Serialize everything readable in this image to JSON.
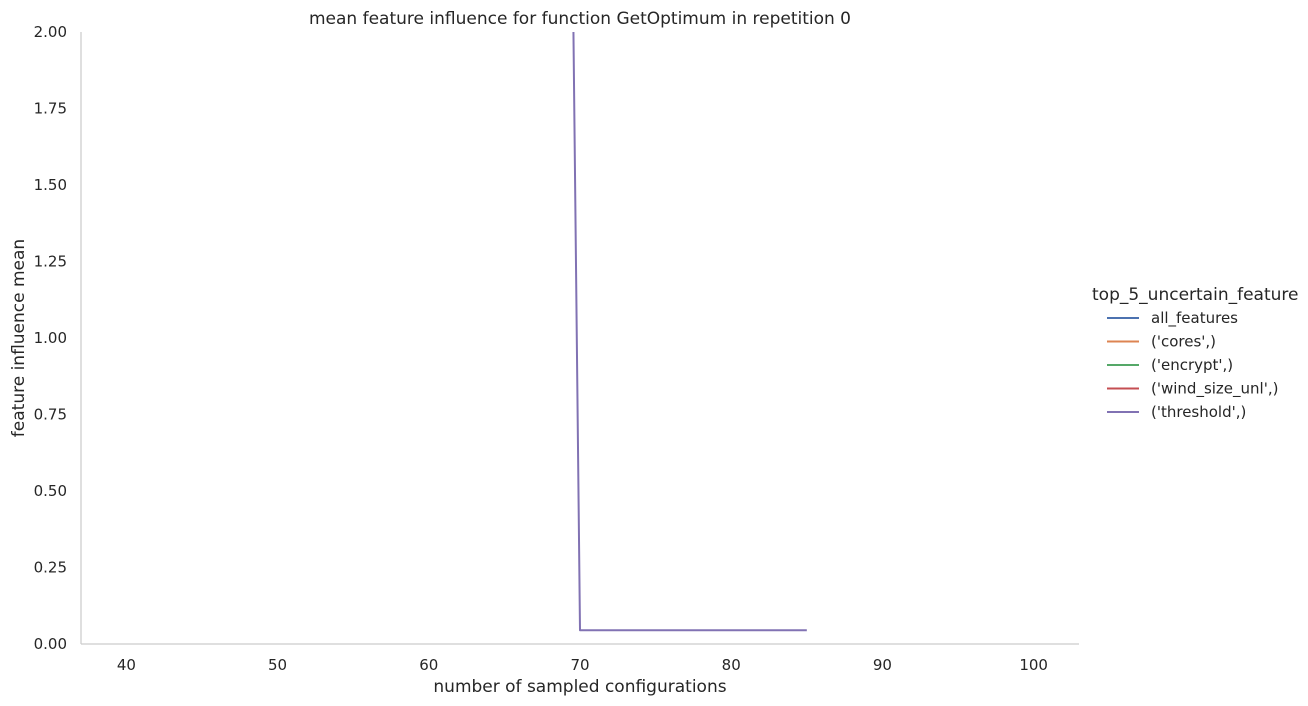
{
  "chart_data": {
    "type": "line",
    "title": "mean feature influence for function GetOptimum in repetition 0",
    "xlabel": "number of sampled configurations",
    "ylabel": "feature influence mean",
    "xlim": [
      37,
      103
    ],
    "ylim": [
      0,
      2.0
    ],
    "xticks": [
      40,
      50,
      60,
      70,
      80,
      90,
      100
    ],
    "xtick_labels": [
      "40",
      "50",
      "60",
      "70",
      "80",
      "90",
      "100"
    ],
    "yticks": [
      0,
      0.25,
      0.5,
      0.75,
      1.0,
      1.25,
      1.5,
      1.75,
      2.0
    ],
    "ytick_labels": [
      "0.00",
      "0.25",
      "0.50",
      "0.75",
      "1.00",
      "1.25",
      "1.50",
      "1.75",
      "2.00"
    ],
    "grid": false,
    "legend": {
      "title": "top_5_uncertain_feature",
      "placement": "right"
    },
    "series": [
      {
        "name": "all_features",
        "color": "#4c72b0",
        "x": [],
        "y": []
      },
      {
        "name": "('cores',)",
        "color": "#dd8452",
        "x": [],
        "y": []
      },
      {
        "name": "('encrypt',)",
        "color": "#55a868",
        "x": [],
        "y": []
      },
      {
        "name": "('wind_size_unl',)",
        "color": "#c44e52",
        "x": [],
        "y": []
      },
      {
        "name": "('threshold',)",
        "color": "#8172b3",
        "x": [
          69.5,
          70,
          75,
          80,
          85
        ],
        "y": [
          2.3,
          0.045,
          0.045,
          0.045,
          0.045
        ]
      }
    ]
  }
}
